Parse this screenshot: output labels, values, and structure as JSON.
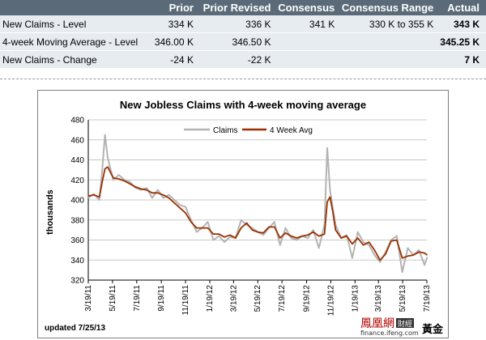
{
  "table": {
    "headers": [
      "",
      "Prior",
      "Prior Revised",
      "Consensus",
      "Consensus Range",
      "Actual"
    ],
    "rows": [
      {
        "label": "New Claims - Level",
        "prior": "334 K",
        "prior_revised": "336 K",
        "consensus": "341 K",
        "consensus_range": "330 K to 355 K",
        "actual": "343 K"
      },
      {
        "label": "4-week Moving Average - Level",
        "prior": "346.00 K",
        "prior_revised": "346.50 K",
        "consensus": "",
        "consensus_range": "",
        "actual": "345.25 K"
      },
      {
        "label": "New Claims - Change",
        "prior": "-24 K",
        "prior_revised": "-22 K",
        "consensus": "",
        "consensus_range": "",
        "actual": "7 K"
      }
    ]
  },
  "chart_data": {
    "type": "line",
    "title": "New Jobless Claims with 4-week moving average",
    "xlabel": "",
    "ylabel": "thousands",
    "ylim": [
      320,
      480
    ],
    "yticks": [
      320,
      340,
      360,
      380,
      400,
      420,
      440,
      460,
      480
    ],
    "xlim": [
      "2011-03-19",
      "2013-07-19"
    ],
    "xticks": [
      "3/19/11",
      "5/19/11",
      "7/19/11",
      "9/19/11",
      "11/19/11",
      "1/19/12",
      "3/19/12",
      "5/19/12",
      "7/19/12",
      "9/19/12",
      "11/19/12",
      "1/19/13",
      "3/19/13",
      "5/19/13",
      "7/19/13"
    ],
    "grid": "horizontal",
    "legend_position": "top-center",
    "x": [
      "2011-03-19",
      "2011-04-02",
      "2011-04-16",
      "2011-04-23",
      "2011-04-30",
      "2011-05-07",
      "2011-05-21",
      "2011-06-04",
      "2011-06-18",
      "2011-07-02",
      "2011-07-16",
      "2011-07-30",
      "2011-08-13",
      "2011-08-27",
      "2011-09-10",
      "2011-09-24",
      "2011-10-08",
      "2011-10-22",
      "2011-11-05",
      "2011-11-19",
      "2011-12-03",
      "2011-12-17",
      "2011-12-31",
      "2012-01-14",
      "2012-01-28",
      "2012-02-11",
      "2012-02-25",
      "2012-03-10",
      "2012-03-24",
      "2012-04-07",
      "2012-04-21",
      "2012-05-05",
      "2012-05-19",
      "2012-06-02",
      "2012-06-16",
      "2012-06-30",
      "2012-07-14",
      "2012-07-28",
      "2012-08-11",
      "2012-08-25",
      "2012-09-08",
      "2012-09-22",
      "2012-10-06",
      "2012-10-20",
      "2012-11-03",
      "2012-11-10",
      "2012-11-17",
      "2012-11-24",
      "2012-12-01",
      "2012-12-15",
      "2012-12-29",
      "2013-01-12",
      "2013-01-26",
      "2013-02-09",
      "2013-02-23",
      "2013-03-09",
      "2013-03-23",
      "2013-04-06",
      "2013-04-20",
      "2013-05-04",
      "2013-05-18",
      "2013-06-01",
      "2013-06-15",
      "2013-06-29",
      "2013-07-13",
      "2013-07-20"
    ],
    "series": [
      {
        "name": "Claims",
        "color": "#b3b3b3",
        "values": [
          402,
          406,
          400,
          430,
          465,
          442,
          420,
          425,
          420,
          418,
          412,
          410,
          412,
          402,
          410,
          402,
          405,
          400,
          395,
          393,
          380,
          368,
          372,
          378,
          360,
          364,
          358,
          363,
          362,
          380,
          375,
          372,
          368,
          365,
          372,
          378,
          355,
          372,
          362,
          360,
          364,
          362,
          370,
          352,
          375,
          452,
          410,
          392,
          375,
          362,
          365,
          342,
          368,
          358,
          355,
          345,
          338,
          348,
          360,
          364,
          328,
          352,
          345,
          350,
          335,
          343
        ]
      },
      {
        "name": "4 Week Avg",
        "color": "#9a3000",
        "values": [
          404,
          405,
          403,
          418,
          431,
          433,
          422,
          421,
          419,
          416,
          413,
          411,
          410,
          407,
          407,
          405,
          402,
          397,
          392,
          387,
          378,
          372,
          372,
          372,
          366,
          366,
          363,
          365,
          362,
          372,
          377,
          370,
          368,
          367,
          373,
          373,
          362,
          367,
          364,
          362,
          364,
          365,
          368,
          364,
          366,
          398,
          403,
          388,
          370,
          362,
          364,
          356,
          362,
          355,
          358,
          350,
          340,
          346,
          359,
          360,
          342,
          344,
          345,
          348,
          347,
          345
        ]
      }
    ]
  },
  "footnote": "updated 7/25/13",
  "watermark": {
    "brand": "鳳凰網",
    "badge": "財經",
    "site": "finance.ifeng.com",
    "gold": "黃金"
  },
  "colors": {
    "header_bg": "#5a6a78",
    "row_bg": "#e7ecf1"
  }
}
